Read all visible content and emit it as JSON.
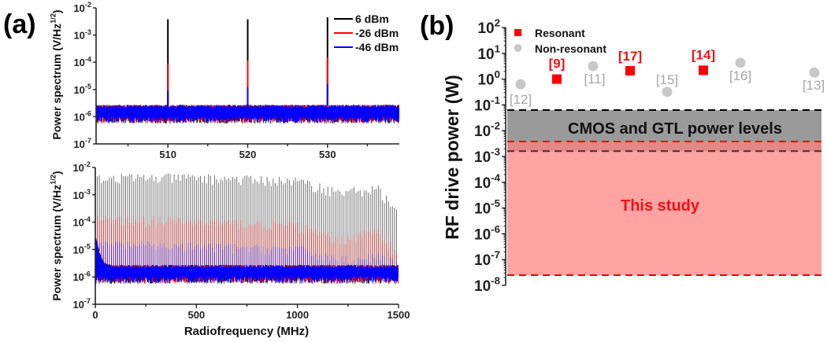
{
  "panel_a_label": "(a)",
  "panel_b_label": "(b)",
  "chart_data": [
    {
      "type": "line",
      "panel": "a-top",
      "title": "",
      "xlabel": "",
      "ylabel": "Power spectrum (V/Hz^1/2)",
      "xlim": [
        501,
        539
      ],
      "ylim": [
        1e-07,
        0.01
      ],
      "yscale": "log",
      "x_ticks": [
        510,
        520,
        530
      ],
      "y_tick_exponents": [
        -2,
        -3,
        -4,
        -5,
        -6,
        -7
      ],
      "legend": {
        "placement": "top-right",
        "entries": [
          "6 dBm",
          "-26 dBm",
          "-46 dBm"
        ]
      },
      "noise_floor": {
        "low": 7e-07,
        "high": 2.5e-06
      },
      "series": [
        {
          "name": "6 dBm",
          "color": "#000000",
          "peaks_mhz": [
            510,
            520,
            530
          ],
          "peak_values": [
            0.0038,
            0.0038,
            0.0045
          ]
        },
        {
          "name": "-26 dBm",
          "color": "#ff0000",
          "peaks_mhz": [
            510,
            520,
            530
          ],
          "peak_values": [
            9e-05,
            0.000115,
            0.00015
          ]
        },
        {
          "name": "-46 dBm",
          "color": "#0000ff",
          "peaks_mhz": [
            510,
            520,
            530
          ],
          "peak_values": [
            9e-06,
            1.2e-05,
            1.6e-05
          ]
        }
      ]
    },
    {
      "type": "line",
      "panel": "a-bottom",
      "title": "",
      "xlabel": "Radiofrequency (MHz)",
      "ylabel": "Power spectrum (V/Hz^1/2)",
      "xlim": [
        0,
        1500
      ],
      "ylim": [
        1e-07,
        0.01
      ],
      "yscale": "log",
      "x_ticks": [
        0,
        500,
        1000,
        1500
      ],
      "y_tick_exponents": [
        -2,
        -3,
        -4,
        -5,
        -6,
        -7
      ],
      "comb_spacing_mhz": 10,
      "noise_floor": {
        "low": 8e-07,
        "high": 2.5e-06,
        "low_freq_value": 3e-05
      },
      "series": [
        {
          "name": "6 dBm",
          "color": "#000000",
          "envelope_mhz": [
            0,
            500,
            1000,
            1200,
            1400,
            1500
          ],
          "envelope_values": [
            0.004,
            0.004,
            0.003,
            0.0012,
            0.0015,
            0.0002
          ]
        },
        {
          "name": "-26 dBm",
          "color": "#ff0000",
          "envelope_mhz": [
            0,
            500,
            1000,
            1200,
            1400,
            1500
          ],
          "envelope_values": [
            0.00012,
            0.0001,
            7e-05,
            2e-05,
            5e-05,
            5e-06
          ]
        },
        {
          "name": "-46 dBm",
          "color": "#0000ff",
          "envelope_mhz": [
            0,
            500,
            1000,
            1200,
            1400,
            1500
          ],
          "envelope_values": [
            1.5e-05,
            1.2e-05,
            1e-05,
            4e-06,
            5e-06,
            3e-06
          ]
        }
      ]
    },
    {
      "type": "scatter",
      "panel": "b",
      "title": "",
      "xlabel": "",
      "ylabel": "RF drive power (W)",
      "ylim": [
        1e-08,
        100
      ],
      "yscale": "log",
      "y_tick_exponents": [
        2,
        1,
        0,
        -1,
        -2,
        -3,
        -4,
        -5,
        -6,
        -7,
        -8
      ],
      "legend": {
        "placement": "top-left",
        "entries": [
          {
            "label": "Resonant",
            "color": "#ff0000",
            "marker": "square"
          },
          {
            "label": "Non-resonant",
            "color": "#c8c8c8",
            "marker": "circle"
          }
        ]
      },
      "points": [
        {
          "ref": "[12]",
          "type": "Non-resonant",
          "value": 0.63
        },
        {
          "ref": "[9]",
          "type": "Resonant",
          "value": 1.0
        },
        {
          "ref": "[11]",
          "type": "Non-resonant",
          "value": 3.2
        },
        {
          "ref": "[17]",
          "type": "Resonant",
          "value": 2.1
        },
        {
          "ref": "[15]",
          "type": "Non-resonant",
          "value": 0.32
        },
        {
          "ref": "[14]",
          "type": "Resonant",
          "value": 2.2
        },
        {
          "ref": "[16]",
          "type": "Non-resonant",
          "value": 4.3
        },
        {
          "ref": "[13]",
          "type": "Non-resonant",
          "value": 1.8
        }
      ],
      "bands": [
        {
          "label": "CMOS and GTL power levels",
          "low": 0.0016,
          "high": 0.063,
          "color": "#9a9a9a",
          "edge_color": "#000000"
        },
        {
          "label": "This study",
          "low": 2.5e-08,
          "high": 0.0038,
          "color": "#ff8080",
          "edge_color": "#ff0000"
        }
      ]
    }
  ]
}
